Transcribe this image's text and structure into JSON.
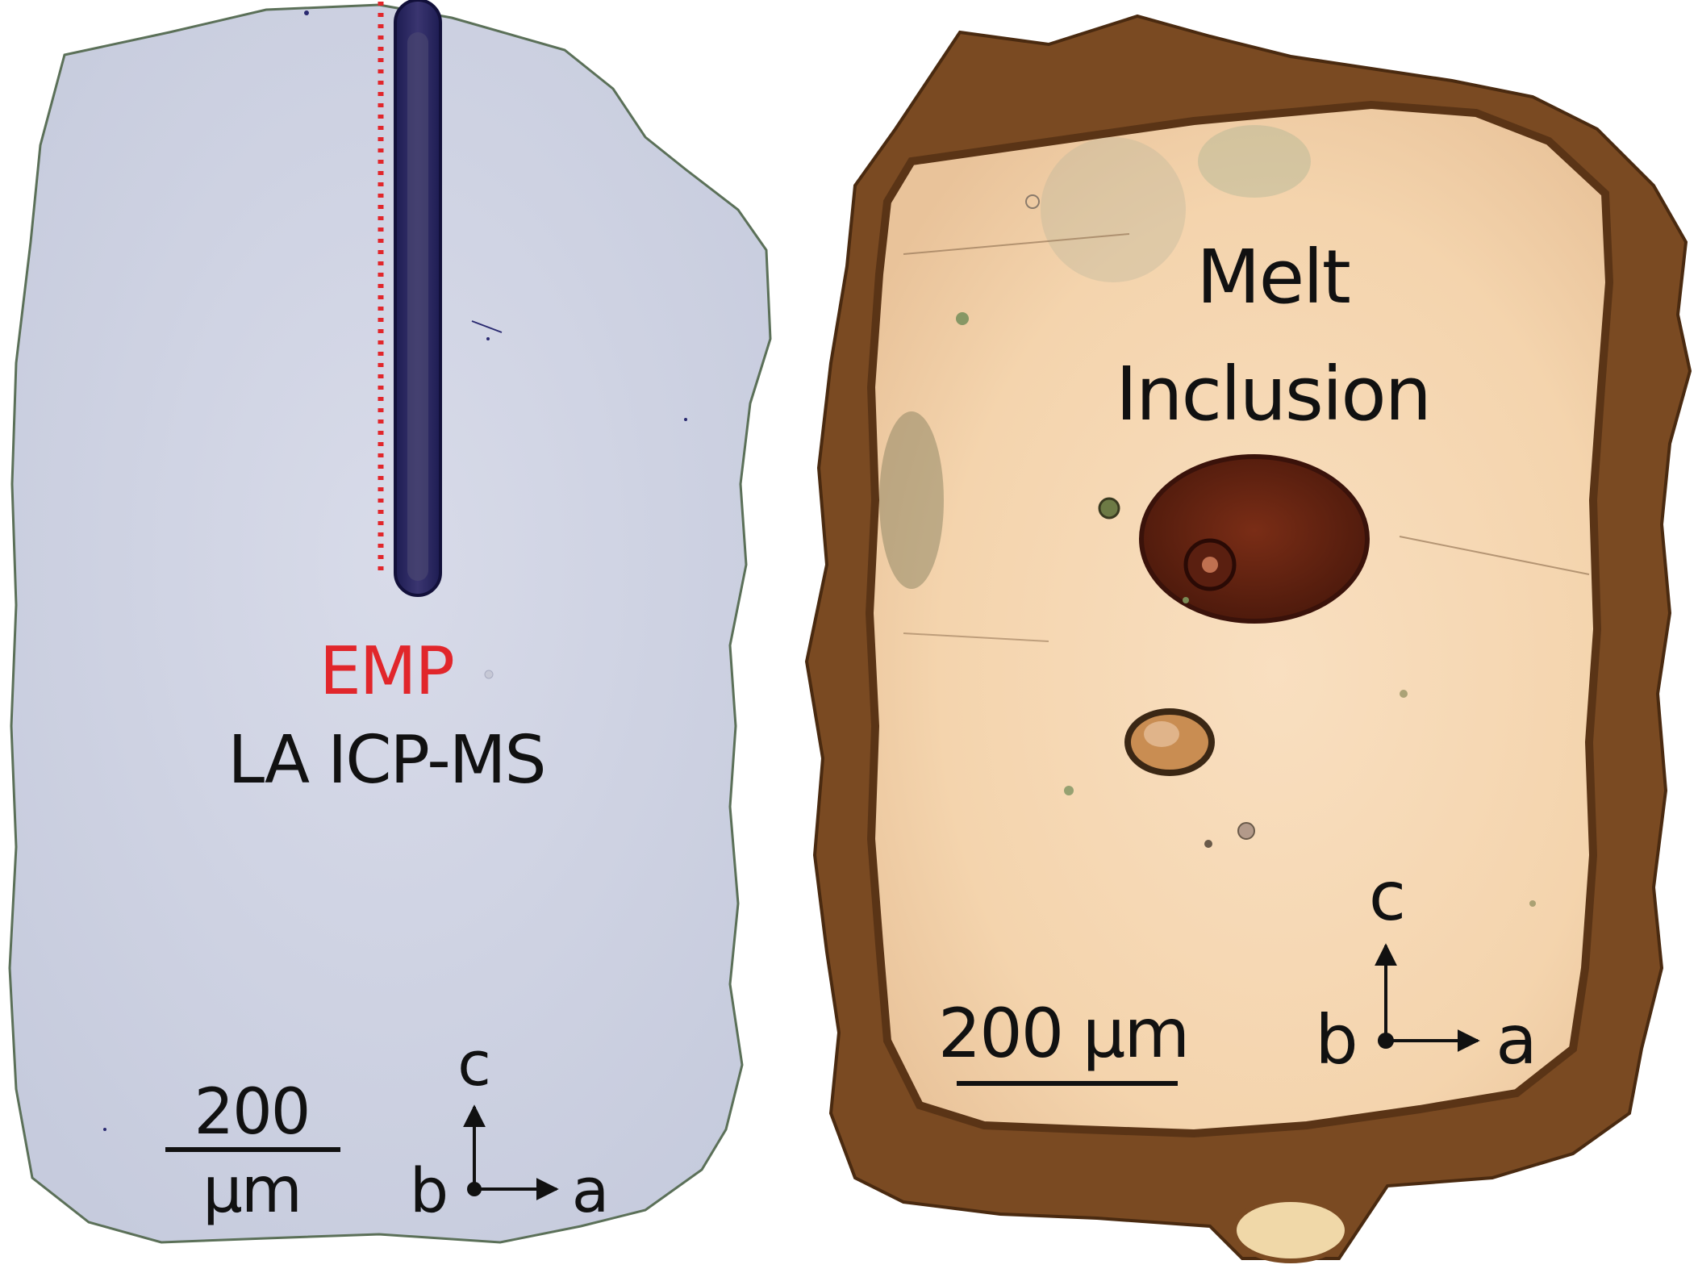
{
  "left_panel": {
    "emp_label": "EMP",
    "la_label": "LA ICP-MS",
    "scale_value": "200",
    "scale_unit": "µm",
    "axis_c": "c",
    "axis_b": "b",
    "axis_a": "a"
  },
  "right_panel": {
    "title_line1": "Melt",
    "title_line2": "Inclusion",
    "scale_label": "200 µm",
    "axis_c": "c",
    "axis_b": "b",
    "axis_a": "a"
  },
  "colors": {
    "emp_red": "#e1262b",
    "text": "#111111",
    "left_crystal": "#d0d4e4",
    "right_crystal": "#f6d9b6",
    "right_rim": "#6b3f1c"
  }
}
